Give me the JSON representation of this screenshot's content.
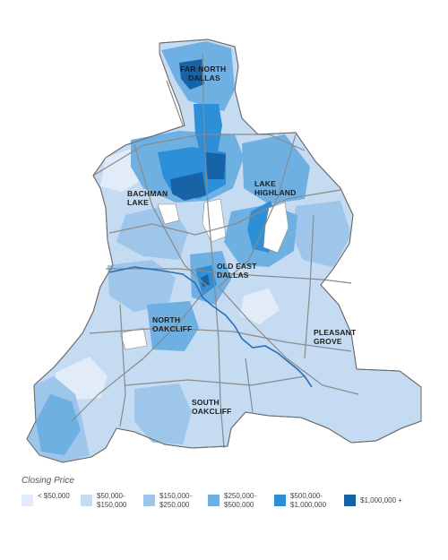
{
  "map": {
    "labels": {
      "far_north_dallas": [
        "FAR NORTH",
        "DALLAS"
      ],
      "lake_highland": [
        "LAKE",
        "HIGHLAND"
      ],
      "bachman_lake": [
        "BACHMAN",
        "LAKE"
      ],
      "old_east_dallas": [
        "OLD EAST",
        "DALLAS"
      ],
      "north_oakcliff": [
        "NORTH",
        "OAKCLIFF"
      ],
      "pleasant_grove": [
        "PLEASANT",
        "GROVE"
      ],
      "south_oakcliff": [
        "SOUTH",
        "OAKCLIFF"
      ]
    },
    "colors": {
      "c1": "#e2ecf8",
      "c2": "#c4dbf1",
      "c3": "#9dc6ea",
      "c4": "#6fb0e3",
      "c5": "#2c8fd8",
      "c6": "#1763a8",
      "highway": "#8a8a8a",
      "river": "#2a6fb9",
      "outline": "#6b6b6b"
    }
  },
  "legend": {
    "title": "Closing Price",
    "items": [
      {
        "lines": [
          "< $50,000"
        ],
        "color": "#e2ecf8"
      },
      {
        "lines": [
          "$50,000-",
          "$150,000"
        ],
        "color": "#c4dbf1"
      },
      {
        "lines": [
          "$150,000-",
          "$250,000"
        ],
        "color": "#9dc6ea"
      },
      {
        "lines": [
          "$250,000-",
          "$500,000"
        ],
        "color": "#6fb0e3"
      },
      {
        "lines": [
          "$500,000-",
          "$1,000,000"
        ],
        "color": "#2c8fd8"
      },
      {
        "lines": [
          "$1,000,000 +"
        ],
        "color": "#1763a8"
      }
    ]
  }
}
